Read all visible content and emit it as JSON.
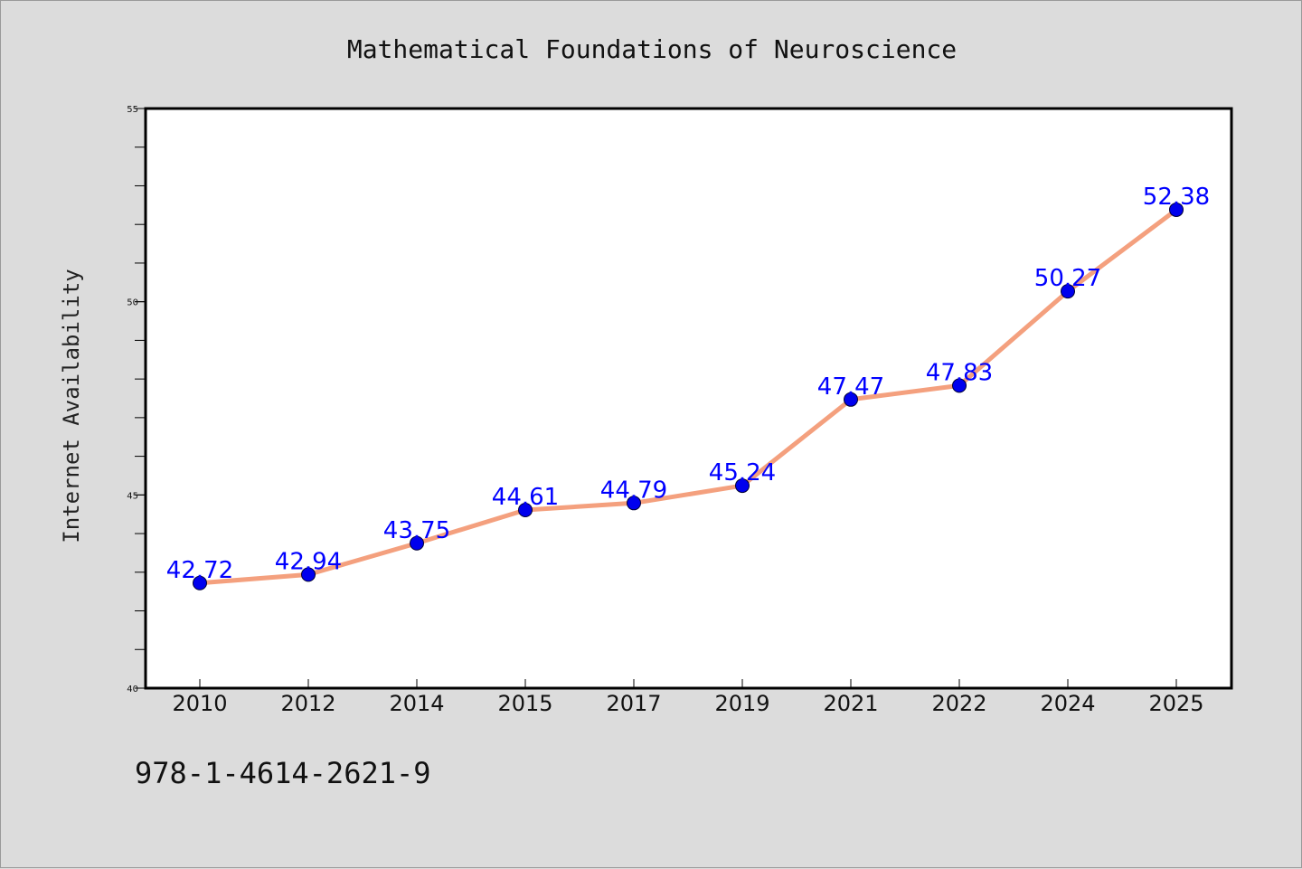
{
  "chart_data": {
    "type": "line",
    "title": "Mathematical Foundations of Neuroscience",
    "xlabel": "",
    "ylabel": "Internet Availability",
    "categories": [
      "2010",
      "2012",
      "2014",
      "2015",
      "2017",
      "2019",
      "2021",
      "2022",
      "2024",
      "2025"
    ],
    "series": [
      {
        "values": [
          42.72,
          42.94,
          43.75,
          44.61,
          44.79,
          45.24,
          47.47,
          47.83,
          50.27,
          52.38
        ]
      }
    ],
    "data_labels": [
      "42.72",
      "42.94",
      "43.75",
      "44.61",
      "44.79",
      "45.24",
      "47.47",
      "47.83",
      "50.27",
      "52.38"
    ],
    "ylim": [
      40,
      55
    ],
    "yticks": [
      "40",
      "45",
      "50",
      "55"
    ],
    "grid": false,
    "legend": "none",
    "colors": {
      "line": "#f4a07e",
      "marker": "#0000ee",
      "label": "#0000ff",
      "background": "#dcdcdc",
      "plot_area": "#ffffff"
    }
  },
  "footnote": "978-1-4614-2621-9"
}
